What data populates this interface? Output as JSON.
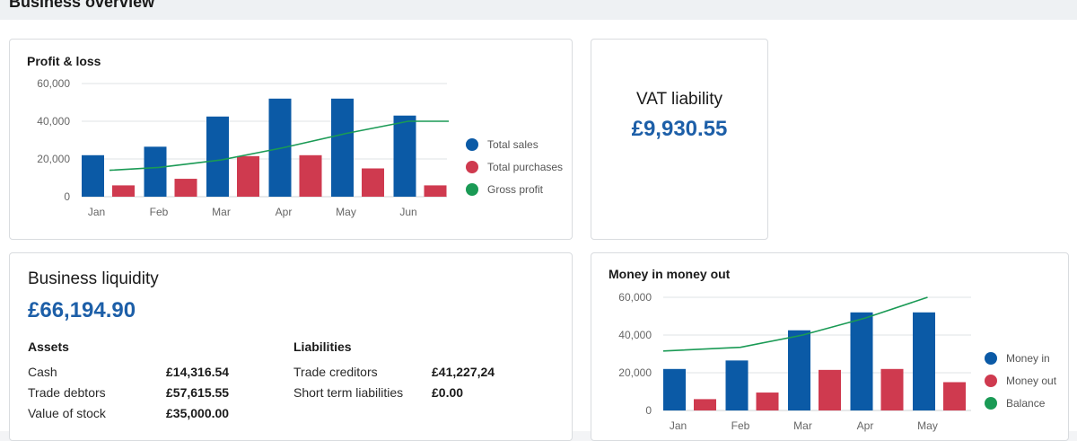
{
  "page": {
    "title": "Business overview"
  },
  "profit_loss": {
    "title": "Profit & loss",
    "chart_data": {
      "type": "bar",
      "categories": [
        "Jan",
        "Feb",
        "Mar",
        "Apr",
        "May",
        "Jun"
      ],
      "series": [
        {
          "name": "Total sales",
          "kind": "bar",
          "color": "#0b5aa6",
          "values": [
            22000,
            26500,
            42500,
            52000,
            52000,
            43000
          ]
        },
        {
          "name": "Total purchases",
          "kind": "bar",
          "color": "#cf3a4f",
          "values": [
            6000,
            9500,
            21500,
            22000,
            15000,
            6000
          ]
        },
        {
          "name": "Gross profit",
          "kind": "line",
          "color": "#1a9a55",
          "values": [
            14000,
            15500,
            19500,
            26000,
            33500,
            40000
          ]
        }
      ],
      "y_ticks": [
        "60,000",
        "40,000",
        "20,000",
        "0"
      ],
      "ylim": [
        0,
        60000
      ],
      "grid": true,
      "legend": "right"
    }
  },
  "vat": {
    "title": "VAT liability",
    "amount": "£9,930.55"
  },
  "liquidity": {
    "title": "Business liquidity",
    "amount": "£66,194.90",
    "assets": {
      "heading": "Assets",
      "items": [
        {
          "label": "Cash",
          "value": "£14,316.54"
        },
        {
          "label": "Trade debtors",
          "value": "£57,615.55"
        },
        {
          "label": "Value of stock",
          "value": "£35,000.00"
        }
      ]
    },
    "liabilities": {
      "heading": "Liabilities",
      "items": [
        {
          "label": "Trade creditors",
          "value": "£41,227,24"
        },
        {
          "label": "Short term liabilities",
          "value": "£0.00"
        }
      ]
    }
  },
  "money": {
    "title": "Money in money out",
    "chart_data": {
      "type": "bar",
      "categories": [
        "Jan",
        "Feb",
        "Mar",
        "Apr",
        "May"
      ],
      "series": [
        {
          "name": "Money in",
          "kind": "bar",
          "color": "#0b5aa6",
          "values": [
            22000,
            26500,
            42500,
            52000,
            52000
          ]
        },
        {
          "name": "Money out",
          "kind": "bar",
          "color": "#cf3a4f",
          "values": [
            6000,
            9500,
            21500,
            22000,
            15000
          ]
        },
        {
          "name": "Balance",
          "kind": "line",
          "color": "#1a9a55",
          "values": [
            31500,
            33500,
            40000,
            49000,
            60000
          ]
        }
      ],
      "y_ticks": [
        "60,000",
        "40,000",
        "20,000",
        "0"
      ],
      "ylim": [
        0,
        60000
      ],
      "grid": true,
      "legend": "right"
    }
  }
}
